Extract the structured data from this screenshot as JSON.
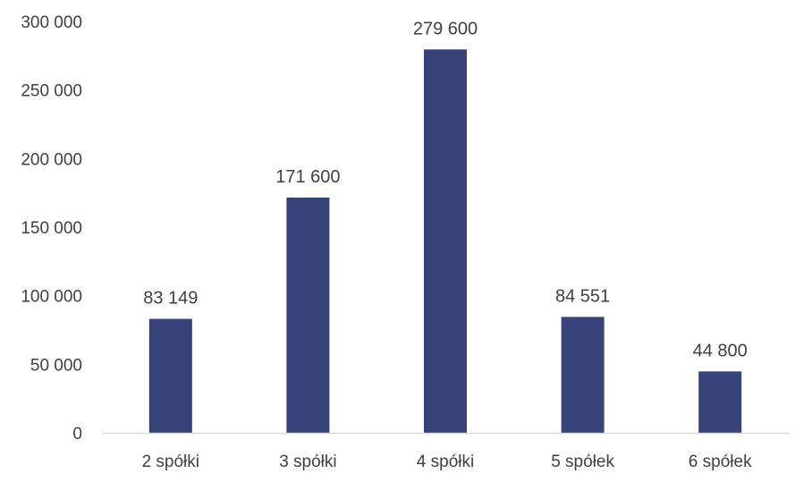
{
  "chart_data": {
    "type": "bar",
    "categories": [
      "2 spółki",
      "3 spółki",
      "4 spółki",
      "5 spółek",
      "6 spółek"
    ],
    "values": [
      83149,
      171600,
      279600,
      84551,
      44800
    ],
    "data_labels": [
      "83 149",
      "171 600",
      "279 600",
      "84 551",
      "44 800"
    ],
    "title": "",
    "xlabel": "",
    "ylabel": "",
    "ylim": [
      0,
      300000
    ],
    "y_ticks": [
      0,
      50000,
      100000,
      150000,
      200000,
      250000,
      300000
    ],
    "y_tick_labels": [
      "0",
      "50 000",
      "100 000",
      "150 000",
      "200 000",
      "250 000",
      "300 000"
    ],
    "grid": false,
    "legend": "none",
    "bar_color": "#374278",
    "axis_color": "#d9d9d9",
    "text_color": "#404040"
  }
}
